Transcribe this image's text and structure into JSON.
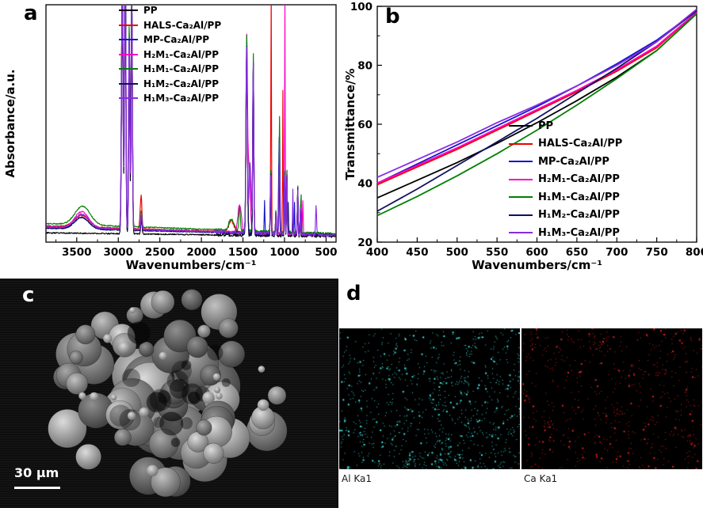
{
  "panels": {
    "a_letter": "a",
    "b_letter": "b",
    "c_letter": "c",
    "d_letter": "d"
  },
  "chart_data": [
    {
      "type": "line",
      "panel": "a",
      "title": "",
      "xlabel": "Wavenumbers/cm⁻¹",
      "ylabel": "Absorbance/a.u.",
      "x_ticks": [
        3500,
        3000,
        2500,
        2000,
        1500,
        1000,
        500
      ],
      "x_range": [
        3870,
        380
      ],
      "y_range": [
        0,
        1.02
      ],
      "legend_position": "inside top-left",
      "grid": false,
      "base_peaks": [
        [
          2952,
          1.05,
          13
        ],
        [
          2917,
          1.3,
          11
        ],
        [
          2868,
          0.85,
          10
        ],
        [
          2838,
          1.0,
          11
        ],
        [
          2722,
          0.07,
          10
        ],
        [
          1455,
          0.8,
          12
        ],
        [
          1376,
          0.74,
          9
        ],
        [
          1166,
          0.26,
          7
        ],
        [
          1103,
          0.1,
          6
        ],
        [
          997,
          0.28,
          6
        ],
        [
          972,
          0.28,
          6
        ],
        [
          899,
          0.1,
          5
        ],
        [
          841,
          0.2,
          6
        ],
        [
          809,
          0.11,
          5
        ]
      ],
      "series": [
        {
          "name": "PP",
          "color": "#000000",
          "baseline": 0.025,
          "tilt": 0.015,
          "scale": 0.92,
          "peaks": []
        },
        {
          "name": "HALS-Ca₂Al/PP",
          "color": "#ee0000",
          "baseline": 0.03,
          "tilt": 0.04,
          "scale": 1.0,
          "peaks": [
            [
              3440,
              0.05,
              120
            ],
            [
              1640,
              0.05,
              40
            ],
            [
              1160,
              0.93,
              5
            ],
            [
              1020,
              0.62,
              5
            ],
            [
              2730,
              0.09,
              15
            ]
          ]
        },
        {
          "name": "MP-Ca₂Al/PP",
          "color": "#1515cc",
          "baseline": 0.03,
          "tilt": 0.03,
          "scale": 1.0,
          "peaks": [
            [
              3440,
              0.05,
              120
            ],
            [
              1240,
              0.14,
              6
            ],
            [
              1065,
              0.42,
              8
            ],
            [
              880,
              0.14,
              5
            ]
          ]
        },
        {
          "name": "H₂M₁-Ca₂Al/PP",
          "color": "#ff00c8",
          "baseline": 0.03,
          "tilt": 0.035,
          "scale": 0.97,
          "peaks": [
            [
              3440,
              0.07,
              120
            ],
            [
              1540,
              0.12,
              30
            ],
            [
              1430,
              0.3,
              22
            ],
            [
              995,
              0.8,
              5
            ],
            [
              780,
              0.14,
              6
            ]
          ]
        },
        {
          "name": "H₁M₁-Ca₂Al/PP",
          "color": "#008000",
          "baseline": 0.035,
          "tilt": 0.045,
          "scale": 1.05,
          "peaks": [
            [
              3430,
              0.08,
              130
            ],
            [
              1640,
              0.05,
              40
            ],
            [
              1540,
              0.1,
              12
            ],
            [
              1060,
              0.5,
              8
            ],
            [
              800,
              0.16,
              5
            ]
          ]
        },
        {
          "name": "H₁M₂-Ca₂Al/PP",
          "color": "#101060",
          "baseline": 0.03,
          "tilt": 0.03,
          "scale": 1.0,
          "peaks": [
            [
              3440,
              0.05,
              120
            ],
            [
              1065,
              0.3,
              8
            ],
            [
              955,
              0.14,
              5
            ]
          ]
        },
        {
          "name": "H₁M₃-Ca₂Al/PP",
          "color": "#8a2be2",
          "baseline": 0.03,
          "tilt": 0.035,
          "scale": 1.0,
          "peaks": [
            [
              3440,
              0.06,
              120
            ],
            [
              1415,
              0.3,
              18
            ],
            [
              1060,
              0.38,
              8
            ],
            [
              900,
              0.1,
              5
            ],
            [
              620,
              0.12,
              8
            ]
          ]
        }
      ]
    },
    {
      "type": "line",
      "panel": "b",
      "title": "",
      "xlabel": "Wavenumbers/cm⁻¹",
      "ylabel": "Transmittance/%",
      "x_ticks": [
        400,
        450,
        500,
        550,
        600,
        650,
        700,
        750,
        800
      ],
      "y_ticks": [
        20,
        40,
        60,
        80,
        100
      ],
      "x_range": [
        400,
        800
      ],
      "y_range": [
        20,
        100
      ],
      "legend_position": "inside lower-right",
      "grid": false,
      "x": [
        400,
        450,
        500,
        550,
        600,
        650,
        700,
        750,
        800
      ],
      "series": [
        {
          "name": "PP",
          "color": "#000000",
          "values": [
            35,
            41,
            47,
            53.5,
            60.5,
            68,
            76,
            85,
            97.5
          ]
        },
        {
          "name": "HALS-Ca₂Al/PP",
          "color": "#ee0000",
          "values": [
            39.5,
            45.5,
            51.5,
            58,
            64.5,
            71,
            78,
            86,
            98
          ]
        },
        {
          "name": "MP-Ca₂Al/PP",
          "color": "#1515cc",
          "values": [
            40,
            46.5,
            53,
            59.5,
            66,
            73,
            80.5,
            88.5,
            98.5
          ]
        },
        {
          "name": "H₂M₁-Ca₂Al/PP",
          "color": "#ff00c8",
          "values": [
            40,
            46,
            52,
            58.5,
            65,
            71.5,
            78.5,
            86.5,
            98
          ]
        },
        {
          "name": "H₁M₁-Ca₂Al/PP",
          "color": "#008000",
          "values": [
            29,
            35.5,
            42.5,
            50,
            58,
            66.5,
            75.5,
            85,
            97.5
          ]
        },
        {
          "name": "H₁M₂-Ca₂Al/PP",
          "color": "#101060",
          "values": [
            30.5,
            38,
            46,
            54,
            62,
            70.5,
            79,
            88,
            98.5
          ]
        },
        {
          "name": "H₁M₃-Ca₂Al/PP",
          "color": "#8a2be2",
          "values": [
            42,
            48,
            54,
            60.5,
            66.5,
            73,
            80,
            88,
            99
          ]
        }
      ]
    }
  ],
  "sem": {
    "scale_bar_label": "30 µm"
  },
  "eds": {
    "maps": [
      {
        "label": "Al Ka1",
        "dot_color": "#3edede"
      },
      {
        "label": "Ca Ka1",
        "dot_color": "#e02020"
      }
    ]
  }
}
